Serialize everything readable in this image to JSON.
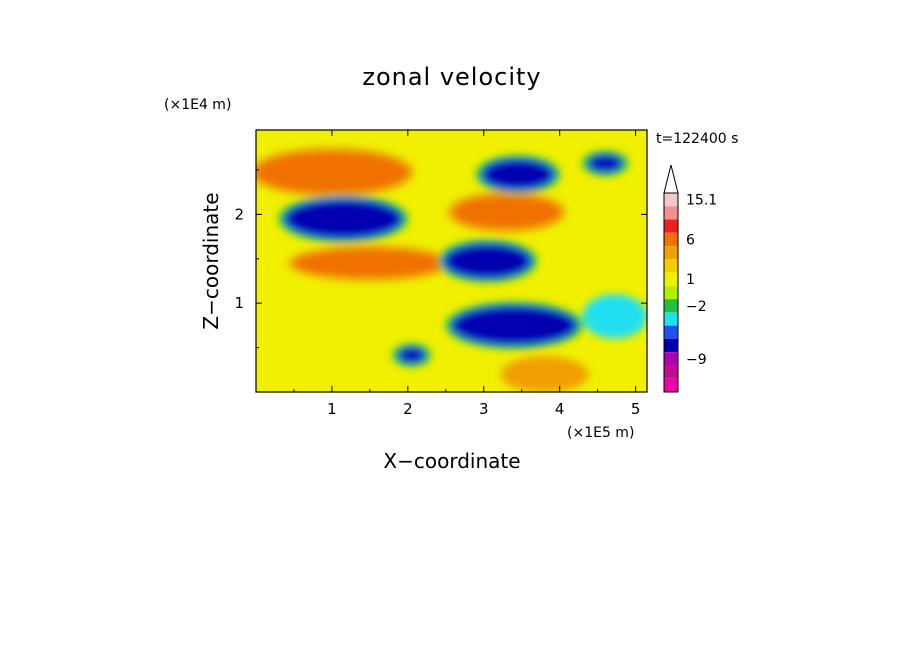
{
  "chart_data": {
    "type": "heatmap",
    "title": "zonal velocity",
    "xlabel": "X−coordinate",
    "ylabel": "Z−coordinate",
    "x_unit": "(×1E5 m)",
    "y_unit": "(×1E4 m)",
    "time_label": "t=122400 s",
    "xlim": [
      0,
      5.15
    ],
    "ylim": [
      0,
      2.95
    ],
    "x_ticks": [
      {
        "value": 1,
        "label": "1"
      },
      {
        "value": 2,
        "label": "2"
      },
      {
        "value": 3,
        "label": "3"
      },
      {
        "value": 4,
        "label": "4"
      },
      {
        "value": 5,
        "label": "5"
      }
    ],
    "y_ticks": [
      {
        "value": 1,
        "label": "1"
      },
      {
        "value": 2,
        "label": "2"
      }
    ],
    "colorbar": {
      "colors": [
        "#f0c8c8",
        "#f09090",
        "#f02020",
        "#f07000",
        "#f0a000",
        "#f0d000",
        "#f0f000",
        "#b0f000",
        "#20c040",
        "#20e0f0",
        "#2050f0",
        "#0000b0",
        "#b000b0",
        "#c01090",
        "#f000b0"
      ],
      "labels": [
        {
          "value": 15.1,
          "label": "15.1"
        },
        {
          "value": 6,
          "label": "6"
        },
        {
          "value": 1,
          "label": "1"
        },
        {
          "value": -2,
          "label": "−2"
        },
        {
          "value": -9,
          "label": "−9"
        }
      ]
    },
    "field_features": [
      {
        "kind": "negative-jet",
        "x": [
          0.4,
          1.9
        ],
        "z": [
          1.75,
          2.15
        ],
        "value": -6
      },
      {
        "kind": "negative-jet",
        "x": [
          2.5,
          3.6
        ],
        "z": [
          1.3,
          1.65
        ],
        "value": -6
      },
      {
        "kind": "negative-jet",
        "x": [
          3.0,
          3.9
        ],
        "z": [
          2.3,
          2.6
        ],
        "value": -6
      },
      {
        "kind": "negative-jet",
        "x": [
          4.4,
          4.8
        ],
        "z": [
          2.5,
          2.65
        ],
        "value": -6
      },
      {
        "kind": "negative-jet",
        "x": [
          2.6,
          4.2
        ],
        "z": [
          0.55,
          0.95
        ],
        "value": -6
      },
      {
        "kind": "negative-jet",
        "x": [
          1.9,
          2.2
        ],
        "z": [
          0.35,
          0.48
        ],
        "value": -6
      },
      {
        "kind": "positive-band",
        "x": [
          0.5,
          2.5
        ],
        "z": [
          1.3,
          1.6
        ],
        "value": 4
      },
      {
        "kind": "positive-band",
        "x": [
          2.6,
          4.0
        ],
        "z": [
          1.85,
          2.2
        ],
        "value": 4
      },
      {
        "kind": "positive-band",
        "x": [
          0.0,
          2.0
        ],
        "z": [
          2.25,
          2.7
        ],
        "value": 4
      },
      {
        "kind": "positive-band",
        "x": [
          3.3,
          4.3
        ],
        "z": [
          0.05,
          0.35
        ],
        "value": 3
      },
      {
        "kind": "weak-negative",
        "x": [
          4.3,
          5.15
        ],
        "z": [
          0.6,
          1.1
        ],
        "value": -1.5
      }
    ]
  }
}
